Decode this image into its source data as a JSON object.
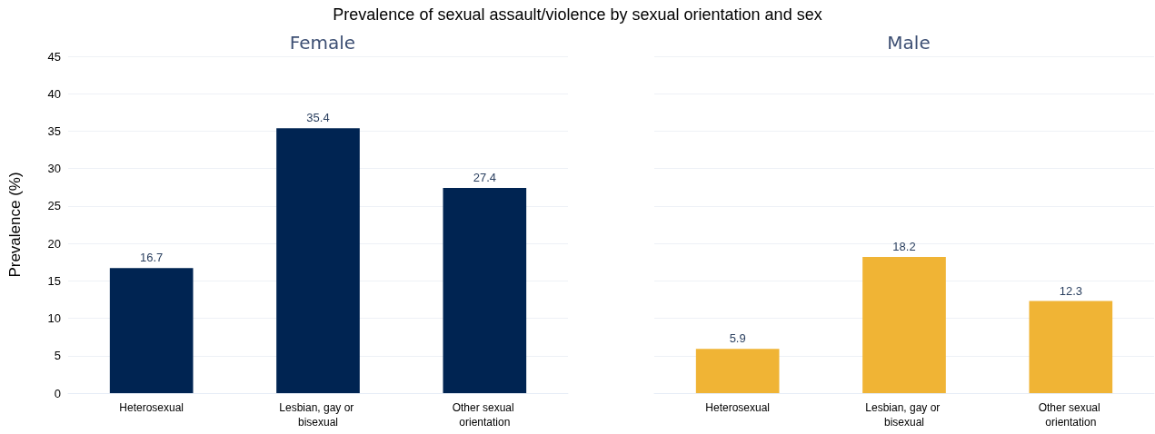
{
  "chart_data": [
    {
      "type": "bar",
      "title": "Prevalence of sexual assault/violence by sexual orientation and sex",
      "subtitle": "Female",
      "ylabel": "Prevalence (%)",
      "categories": [
        "Heterosexual",
        "Lesbian, gay or bisexual",
        "Other sexual orientation"
      ],
      "values": [
        16.7,
        35.4,
        27.4
      ],
      "color": "#002452",
      "ylim": [
        0,
        45
      ],
      "yticks": [
        0,
        5,
        10,
        15,
        20,
        25,
        30,
        35,
        40,
        45
      ],
      "grid": "y",
      "data_labels": true
    },
    {
      "type": "bar",
      "subtitle": "Male",
      "categories": [
        "Heterosexual",
        "Lesbian, gay or bisexual",
        "Other sexual orientation"
      ],
      "values": [
        5.9,
        18.2,
        12.3
      ],
      "color": "#f0b435",
      "ylim": [
        0,
        45
      ],
      "yticks": [
        0,
        5,
        10,
        15,
        20,
        25,
        30,
        35,
        40,
        45
      ],
      "grid": "y",
      "data_labels": true,
      "tick_labels": "x"
    }
  ]
}
